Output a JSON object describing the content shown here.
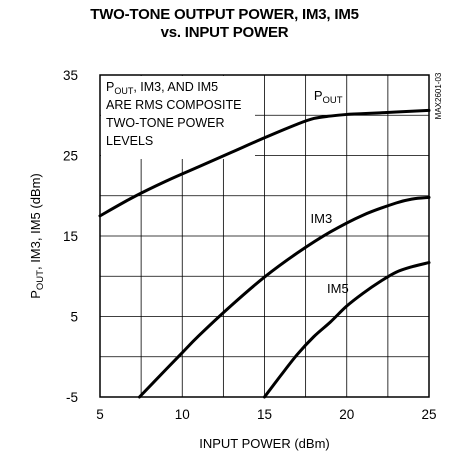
{
  "chart_data": {
    "type": "line",
    "title_line1": "TWO-TONE OUTPUT POWER, IM3, IM5",
    "title_line2": "vs. INPUT POWER",
    "xlabel": "INPUT POWER (dBm)",
    "ylabel": {
      "prefix": "P",
      "subscript": "OUT",
      "suffix": ", IM3, IM5 (dBm)"
    },
    "xlim": [
      5,
      25
    ],
    "ylim": [
      -5,
      35
    ],
    "x_ticks": [
      5,
      10,
      15,
      20,
      25
    ],
    "y_ticks": [
      -5,
      5,
      15,
      25,
      35
    ],
    "grid": true,
    "part_code": "MAX2601-03",
    "annotation_lines": [
      {
        "prefix": "P",
        "subscript": "OUT",
        "suffix": ", IM3, AND IM5"
      },
      {
        "prefix": "ARE RMS COMPOSITE",
        "subscript": "",
        "suffix": ""
      },
      {
        "prefix": "TWO-TONE POWER",
        "subscript": "",
        "suffix": ""
      },
      {
        "prefix": "LEVELS",
        "subscript": "",
        "suffix": ""
      }
    ],
    "series": [
      {
        "name": {
          "prefix": "P",
          "subscript": "OUT",
          "suffix": ""
        },
        "x": [
          5,
          7,
          9,
          11,
          13,
          15,
          17,
          18,
          19,
          20,
          21,
          22,
          23,
          25
        ],
        "y": [
          17.5,
          19.8,
          21.8,
          23.6,
          25.4,
          27.2,
          28.9,
          29.6,
          29.9,
          30.1,
          30.2,
          30.3,
          30.4,
          30.6
        ]
      },
      {
        "name": {
          "prefix": "IM3",
          "subscript": "",
          "suffix": ""
        },
        "x": [
          7.4,
          9,
          10,
          11,
          13,
          15,
          17,
          19,
          21,
          23,
          24,
          25
        ],
        "y": [
          -5,
          -1.6,
          0.5,
          2.6,
          6.4,
          9.9,
          12.9,
          15.5,
          17.6,
          19.1,
          19.6,
          19.8
        ]
      },
      {
        "name": {
          "prefix": "IM5",
          "subscript": "",
          "suffix": ""
        },
        "x": [
          15,
          16,
          17,
          18,
          19,
          20,
          21,
          22,
          23,
          24,
          25
        ],
        "y": [
          -5,
          -2.3,
          0.3,
          2.5,
          4.3,
          6.3,
          7.9,
          9.3,
          10.5,
          11.2,
          11.7
        ]
      }
    ]
  }
}
